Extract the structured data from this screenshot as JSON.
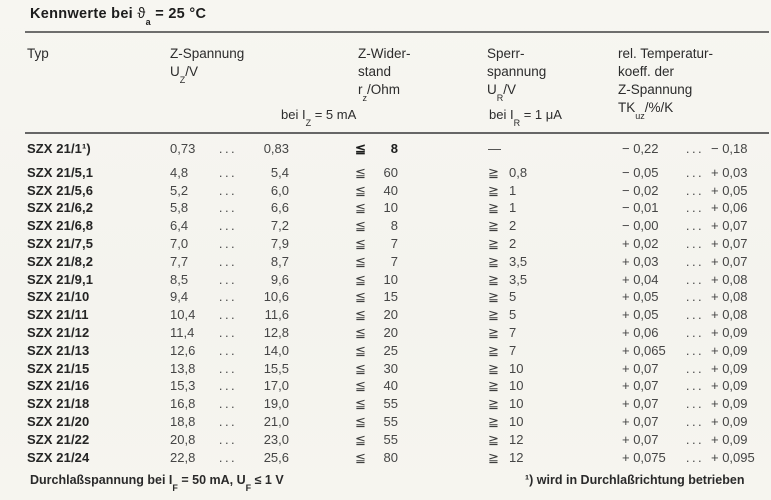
{
  "title": {
    "pre": "Kennwerte bei ",
    "theta": "ϑ",
    "theta_sub": "a",
    "post": " = 25 °C"
  },
  "header": {
    "typ": "Typ",
    "uz": {
      "l1": "Z-Spannung",
      "sym": "U",
      "sub": "Z",
      "unit": "/V"
    },
    "rz": {
      "l1": "Z-Wider-",
      "l2": "stand",
      "sym": "r",
      "sub": "z",
      "unit": "/Ohm"
    },
    "rz_cond": {
      "pre": "bei I",
      "sub": "Z",
      "post": " = 5 mA"
    },
    "ur": {
      "l1": "Sperr-",
      "l2": "spannung",
      "sym": "U",
      "sub": "R",
      "unit": "/V"
    },
    "ur_cond": {
      "pre": "bei I",
      "sub": "R",
      "post": " = 1 μA"
    },
    "tk": {
      "l1": "rel. Temperatur-",
      "l2": "koeff. der",
      "l3": "Z-Spannung",
      "sym": "TK",
      "sub": "uz",
      "unit": "/%/K"
    }
  },
  "range_separator": "...",
  "rows": [
    {
      "typ": "SZX 21/1¹)",
      "uz_min": "0,73",
      "uz_max": "0,83",
      "rz_op": "≦",
      "rz": "8",
      "ur_op": "—",
      "ur": "",
      "tk_min": "− 0,22",
      "tk_max": "− 0,18",
      "rz_bold": true
    },
    {
      "typ": "SZX 21/5,1",
      "uz_min": "4,8",
      "uz_max": "5,4",
      "rz_op": "≦",
      "rz": "60",
      "ur_op": "≧",
      "ur": "0,8",
      "tk_min": "− 0,05",
      "tk_max": "+ 0,03"
    },
    {
      "typ": "SZX 21/5,6",
      "uz_min": "5,2",
      "uz_max": "6,0",
      "rz_op": "≦",
      "rz": "40",
      "ur_op": "≧",
      "ur": "1",
      "tk_min": "− 0,02",
      "tk_max": "+ 0,05"
    },
    {
      "typ": "SZX 21/6,2",
      "uz_min": "5,8",
      "uz_max": "6,6",
      "rz_op": "≦",
      "rz": "10",
      "ur_op": "≧",
      "ur": "1",
      "tk_min": "− 0,01",
      "tk_max": "+ 0,06"
    },
    {
      "typ": "SZX 21/6,8",
      "uz_min": "6,4",
      "uz_max": "7,2",
      "rz_op": "≦",
      "rz": "8",
      "ur_op": "≧",
      "ur": "2",
      "tk_min": "− 0,00",
      "tk_max": "+ 0,07"
    },
    {
      "typ": "SZX 21/7,5",
      "uz_min": "7,0",
      "uz_max": "7,9",
      "rz_op": "≦",
      "rz": "7",
      "ur_op": "≧",
      "ur": "2",
      "tk_min": "+ 0,02",
      "tk_max": "+ 0,07"
    },
    {
      "typ": "SZX 21/8,2",
      "uz_min": "7,7",
      "uz_max": "8,7",
      "rz_op": "≦",
      "rz": "7",
      "ur_op": "≧",
      "ur": "3,5",
      "tk_min": "+ 0,03",
      "tk_max": "+ 0,07"
    },
    {
      "typ": "SZX 21/9,1",
      "uz_min": "8,5",
      "uz_max": "9,6",
      "rz_op": "≦",
      "rz": "10",
      "ur_op": "≧",
      "ur": "3,5",
      "tk_min": "+ 0,04",
      "tk_max": "+ 0,08"
    },
    {
      "typ": "SZX 21/10",
      "uz_min": "9,4",
      "uz_max": "10,6",
      "rz_op": "≦",
      "rz": "15",
      "ur_op": "≧",
      "ur": "5",
      "tk_min": "+ 0,05",
      "tk_max": "+ 0,08"
    },
    {
      "typ": "SZX 21/11",
      "uz_min": "10,4",
      "uz_max": "11,6",
      "rz_op": "≦",
      "rz": "20",
      "ur_op": "≧",
      "ur": "5",
      "tk_min": "+ 0,05",
      "tk_max": "+ 0,08"
    },
    {
      "typ": "SZX 21/12",
      "uz_min": "11,4",
      "uz_max": "12,8",
      "rz_op": "≦",
      "rz": "20",
      "ur_op": "≧",
      "ur": "7",
      "tk_min": "+ 0,06",
      "tk_max": "+ 0,09"
    },
    {
      "typ": "SZX 21/13",
      "uz_min": "12,6",
      "uz_max": "14,0",
      "rz_op": "≦",
      "rz": "25",
      "ur_op": "≧",
      "ur": "7",
      "tk_min": "+ 0,065",
      "tk_max": "+ 0,09"
    },
    {
      "typ": "SZX 21/15",
      "uz_min": "13,8",
      "uz_max": "15,5",
      "rz_op": "≦",
      "rz": "30",
      "ur_op": "≧",
      "ur": "10",
      "tk_min": "+ 0,07",
      "tk_max": "+ 0,09"
    },
    {
      "typ": "SZX 21/16",
      "uz_min": "15,3",
      "uz_max": "17,0",
      "rz_op": "≦",
      "rz": "40",
      "ur_op": "≧",
      "ur": "10",
      "tk_min": "+ 0,07",
      "tk_max": "+ 0,09"
    },
    {
      "typ": "SZX 21/18",
      "uz_min": "16,8",
      "uz_max": "19,0",
      "rz_op": "≦",
      "rz": "55",
      "ur_op": "≧",
      "ur": "10",
      "tk_min": "+ 0,07",
      "tk_max": "+ 0,09"
    },
    {
      "typ": "SZX 21/20",
      "uz_min": "18,8",
      "uz_max": "21,0",
      "rz_op": "≦",
      "rz": "55",
      "ur_op": "≧",
      "ur": "10",
      "tk_min": "+ 0,07",
      "tk_max": "+ 0,09"
    },
    {
      "typ": "SZX 21/22",
      "uz_min": "20,8",
      "uz_max": "23,0",
      "rz_op": "≦",
      "rz": "55",
      "ur_op": "≧",
      "ur": "12",
      "tk_min": "+ 0,07",
      "tk_max": "+ 0,09"
    },
    {
      "typ": "SZX 21/24",
      "uz_min": "22,8",
      "uz_max": "25,6",
      "rz_op": "≦",
      "rz": "80",
      "ur_op": "≧",
      "ur": "12",
      "tk_min": "+ 0,075",
      "tk_max": "+ 0,095"
    }
  ],
  "footer": {
    "left": {
      "pre": "Durchlaßspannung bei I",
      "sub1": "F",
      "mid": " = 50 mA,  U",
      "sub2": "F",
      "post": "  ≤  1 V"
    },
    "right": "¹) wird in Durchlaßrichtung betrieben"
  }
}
